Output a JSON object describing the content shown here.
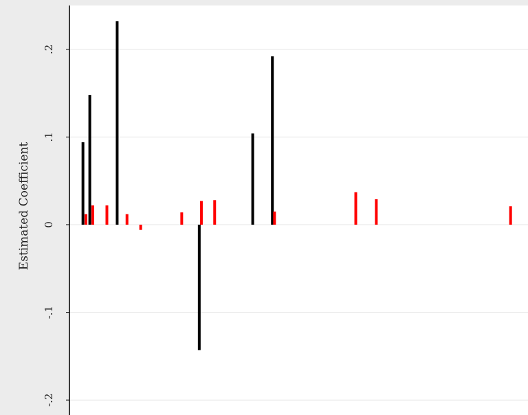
{
  "chart_data": {
    "type": "bar",
    "title": "",
    "xlabel": "",
    "ylabel": "Estimated Coefficient",
    "ylim": [
      -0.2,
      0.24
    ],
    "yticks": [
      -0.2,
      -0.1,
      0,
      0.1,
      0.2
    ],
    "ytick_labels": [
      "-.2",
      "-.1",
      "0",
      ".1",
      ".2"
    ],
    "grid": true,
    "legend": "none",
    "x_range": [
      0,
      100
    ],
    "series": [
      {
        "color": "#000000",
        "points": [
          {
            "x": 3,
            "y": 0.094
          },
          {
            "x": 4.6,
            "y": 0.148
          },
          {
            "x": 11,
            "y": 0.232
          },
          {
            "x": 30.2,
            "y": -0.143
          },
          {
            "x": 42.7,
            "y": 0.104
          },
          {
            "x": 47.3,
            "y": 0.192
          }
        ]
      },
      {
        "color": "#ff0000",
        "points": [
          {
            "x": 3.7,
            "y": 0.012
          },
          {
            "x": 5.3,
            "y": 0.022
          },
          {
            "x": 8.6,
            "y": 0.022
          },
          {
            "x": 13.3,
            "y": 0.012
          },
          {
            "x": 16.5,
            "y": -0.006
          },
          {
            "x": 26.1,
            "y": 0.014
          },
          {
            "x": 30.7,
            "y": 0.027
          },
          {
            "x": 33.8,
            "y": 0.028
          },
          {
            "x": 47.8,
            "y": 0.015
          },
          {
            "x": 66.8,
            "y": 0.037
          },
          {
            "x": 71.6,
            "y": 0.029
          },
          {
            "x": 103,
            "y": 0.021
          }
        ]
      }
    ]
  }
}
